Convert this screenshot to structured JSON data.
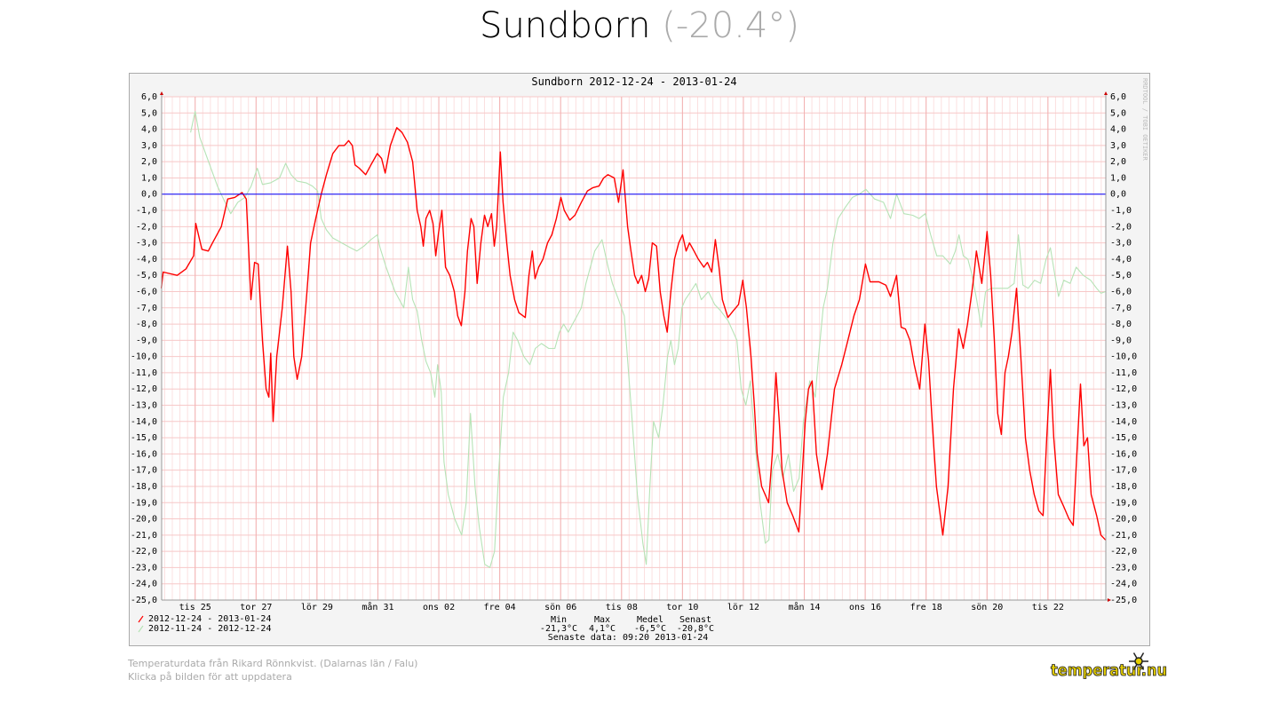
{
  "header": {
    "name": "Sundborn",
    "current": "(-20.4°)"
  },
  "chart_data": {
    "type": "line",
    "title": "Sundborn 2012-12-24 - 2013-01-24",
    "watermark": "RRDTOOL / TOBI OETIKER",
    "xlim": [
      -0.1,
      30.9
    ],
    "ylim": [
      -25,
      6
    ],
    "grid": true,
    "reference_line": {
      "value": 0,
      "color": "#0000ff"
    },
    "xticks": [
      {
        "value": 1,
        "label": "tis 25"
      },
      {
        "value": 3,
        "label": "tor 27"
      },
      {
        "value": 5,
        "label": "lör 29"
      },
      {
        "value": 7,
        "label": "mån 31"
      },
      {
        "value": 9,
        "label": "ons 02"
      },
      {
        "value": 11,
        "label": "fre 04"
      },
      {
        "value": 13,
        "label": "sön 06"
      },
      {
        "value": 15,
        "label": "tis 08"
      },
      {
        "value": 17,
        "label": "tor 10"
      },
      {
        "value": 19,
        "label": "lör 12"
      },
      {
        "value": 21,
        "label": "mån 14"
      },
      {
        "value": 23,
        "label": "ons 16"
      },
      {
        "value": 25,
        "label": "fre 18"
      },
      {
        "value": 27,
        "label": "sön 20"
      },
      {
        "value": 29,
        "label": "tis 22"
      }
    ],
    "yticks": [
      {
        "value": 6,
        "label": "6,0"
      },
      {
        "value": 5,
        "label": "5,0"
      },
      {
        "value": 4,
        "label": "4,0"
      },
      {
        "value": 3,
        "label": "3,0"
      },
      {
        "value": 2,
        "label": "2,0"
      },
      {
        "value": 1,
        "label": "1,0"
      },
      {
        "value": 0,
        "label": "0,0"
      },
      {
        "value": -1,
        "label": "-1,0"
      },
      {
        "value": -2,
        "label": "-2,0"
      },
      {
        "value": -3,
        "label": "-3,0"
      },
      {
        "value": -4,
        "label": "-4,0"
      },
      {
        "value": -5,
        "label": "-5,0"
      },
      {
        "value": -6,
        "label": "-6,0"
      },
      {
        "value": -7,
        "label": "-7,0"
      },
      {
        "value": -8,
        "label": "-8,0"
      },
      {
        "value": -9,
        "label": "-9,0"
      },
      {
        "value": -10,
        "label": "-10,0"
      },
      {
        "value": -11,
        "label": "-11,0"
      },
      {
        "value": -12,
        "label": "-12,0"
      },
      {
        "value": -13,
        "label": "-13,0"
      },
      {
        "value": -14,
        "label": "-14,0"
      },
      {
        "value": -15,
        "label": "-15,0"
      },
      {
        "value": -16,
        "label": "-16,0"
      },
      {
        "value": -17,
        "label": "-17,0"
      },
      {
        "value": -18,
        "label": "-18,0"
      },
      {
        "value": -19,
        "label": "-19,0"
      },
      {
        "value": -20,
        "label": "-20,0"
      },
      {
        "value": -21,
        "label": "-21,0"
      },
      {
        "value": -22,
        "label": "-22,0"
      },
      {
        "value": -23,
        "label": "-23,0"
      },
      {
        "value": -24,
        "label": "-24,0"
      },
      {
        "value": -25,
        "label": "-25,0"
      }
    ],
    "series": [
      {
        "name": "2012-12-24 - 2013-01-24",
        "color": "#ff0000",
        "x": [
          -0.11,
          -0.05,
          0.41,
          0.7,
          0.95,
          1.02,
          1.22,
          1.43,
          1.57,
          1.86,
          2.07,
          2.3,
          2.54,
          2.68,
          2.83,
          2.95,
          3.07,
          3.21,
          3.33,
          3.42,
          3.48,
          3.56,
          3.68,
          3.86,
          4.03,
          4.15,
          4.24,
          4.35,
          4.5,
          4.67,
          4.79,
          4.96,
          5.14,
          5.31,
          5.52,
          5.72,
          5.9,
          6.04,
          6.16,
          6.25,
          6.39,
          6.6,
          6.77,
          6.98,
          7.12,
          7.24,
          7.41,
          7.62,
          7.79,
          7.97,
          8.14,
          8.29,
          8.41,
          8.49,
          8.58,
          8.7,
          8.81,
          8.9,
          8.99,
          9.1,
          9.22,
          9.36,
          9.51,
          9.62,
          9.74,
          9.86,
          9.94,
          10.06,
          10.15,
          10.26,
          10.38,
          10.5,
          10.61,
          10.73,
          10.82,
          10.9,
          11.02,
          11.11,
          11.23,
          11.34,
          11.49,
          11.63,
          11.84,
          11.96,
          12.07,
          12.16,
          12.28,
          12.42,
          12.57,
          12.71,
          12.86,
          13.01,
          13.12,
          13.3,
          13.47,
          13.68,
          13.88,
          14.06,
          14.26,
          14.41,
          14.55,
          14.76,
          14.9,
          15.05,
          15.2,
          15.31,
          15.43,
          15.54,
          15.66,
          15.78,
          15.89,
          16.01,
          16.15,
          16.27,
          16.39,
          16.5,
          16.62,
          16.74,
          16.88,
          17.0,
          17.12,
          17.23,
          17.38,
          17.52,
          17.7,
          17.82,
          17.96,
          18.08,
          18.2,
          18.31,
          18.49,
          18.66,
          18.84,
          18.98,
          19.1,
          19.25,
          19.36,
          19.45,
          19.6,
          19.83,
          19.95,
          20.07,
          20.18,
          20.27,
          20.44,
          20.62,
          20.82,
          20.91,
          21.03,
          21.14,
          21.26,
          21.4,
          21.58,
          21.76,
          21.99,
          22.23,
          22.43,
          22.63,
          22.81,
          23.01,
          23.16,
          23.45,
          23.68,
          23.83,
          24.03,
          24.18,
          24.32,
          24.47,
          24.61,
          24.79,
          24.96,
          25.08,
          25.2,
          25.34,
          25.55,
          25.72,
          25.9,
          26.07,
          26.22,
          26.36,
          26.54,
          26.65,
          26.83,
          27.0,
          27.12,
          27.24,
          27.35,
          27.47,
          27.59,
          27.7,
          27.82,
          27.97,
          28.11,
          28.26,
          28.4,
          28.55,
          28.7,
          28.84,
          28.96,
          29.08,
          29.19,
          29.34,
          29.51,
          29.69,
          29.83,
          29.95,
          30.07,
          30.18,
          30.3,
          30.42,
          30.6,
          30.74,
          30.89
        ],
        "values": [
          -5.8,
          -4.8,
          -5.0,
          -4.6,
          -3.8,
          -1.8,
          -3.4,
          -3.5,
          -3.0,
          -2.0,
          -0.3,
          -0.2,
          0.1,
          -0.3,
          -6.5,
          -4.2,
          -4.3,
          -9.0,
          -12.0,
          -12.5,
          -9.8,
          -14.0,
          -10.0,
          -7.0,
          -3.2,
          -6.0,
          -10.0,
          -11.4,
          -10.0,
          -6.0,
          -3.0,
          -1.5,
          0.0,
          1.2,
          2.5,
          3.0,
          3.0,
          3.3,
          3.0,
          1.8,
          1.6,
          1.2,
          1.8,
          2.5,
          2.2,
          1.3,
          3.0,
          4.1,
          3.8,
          3.2,
          2.0,
          -1.0,
          -2.0,
          -3.2,
          -1.5,
          -1.0,
          -1.8,
          -3.8,
          -2.4,
          -1.0,
          -4.5,
          -5.0,
          -6.0,
          -7.5,
          -8.1,
          -6.0,
          -3.5,
          -1.5,
          -2.0,
          -5.5,
          -3.0,
          -1.3,
          -2.0,
          -1.2,
          -3.2,
          -2.0,
          2.6,
          -0.5,
          -3.0,
          -5.0,
          -6.5,
          -7.3,
          -7.6,
          -5.0,
          -3.5,
          -5.2,
          -4.5,
          -4.0,
          -3.0,
          -2.5,
          -1.5,
          -0.2,
          -1.0,
          -1.6,
          -1.3,
          -0.5,
          0.2,
          0.4,
          0.5,
          1.0,
          1.2,
          1.0,
          -0.5,
          1.5,
          -2.0,
          -3.5,
          -5.0,
          -5.5,
          -5.0,
          -6.0,
          -5.2,
          -3.0,
          -3.2,
          -6.0,
          -7.5,
          -8.5,
          -6.0,
          -4.0,
          -3.0,
          -2.5,
          -3.5,
          -3.0,
          -3.5,
          -4.0,
          -4.5,
          -4.2,
          -4.8,
          -2.8,
          -4.5,
          -6.5,
          -7.6,
          -7.2,
          -6.8,
          -5.3,
          -7.0,
          -10.0,
          -13.0,
          -16.0,
          -18.0,
          -19.0,
          -16.0,
          -11.0,
          -14.0,
          -17.0,
          -19.0,
          -19.8,
          -20.8,
          -18.0,
          -14.0,
          -12.0,
          -11.5,
          -16.0,
          -18.2,
          -16.0,
          -12.0,
          -10.5,
          -9.0,
          -7.5,
          -6.5,
          -4.3,
          -5.4,
          -5.4,
          -5.6,
          -6.3,
          -5.0,
          -8.2,
          -8.3,
          -9.0,
          -10.5,
          -12.0,
          -8.0,
          -10.2,
          -14.0,
          -18.0,
          -21.0,
          -18.0,
          -12.0,
          -8.3,
          -9.5,
          -8.0,
          -5.5,
          -3.5,
          -5.5,
          -2.3,
          -5.0,
          -9.0,
          -13.5,
          -14.8,
          -11.0,
          -10.0,
          -8.5,
          -5.8,
          -10.0,
          -15.0,
          -17.0,
          -18.5,
          -19.5,
          -19.8,
          -15.0,
          -10.8,
          -15.0,
          -18.5,
          -19.2,
          -20.0,
          -20.4,
          -16.0,
          -11.7,
          -15.5,
          -15.0,
          -18.5,
          -19.8,
          -21.0,
          -21.3
        ]
      },
      {
        "name": "2012-11-24 - 2012-12-24",
        "color": "#b6e3b6",
        "x": [
          0.85,
          1.0,
          1.15,
          1.44,
          1.73,
          1.93,
          2.17,
          2.4,
          2.63,
          2.84,
          3.04,
          3.21,
          3.48,
          3.77,
          3.97,
          4.15,
          4.35,
          4.64,
          4.85,
          5.02,
          5.14,
          5.31,
          5.52,
          5.81,
          6.1,
          6.31,
          6.54,
          6.77,
          6.98,
          7.07,
          7.27,
          7.56,
          7.85,
          8.0,
          8.14,
          8.29,
          8.44,
          8.58,
          8.73,
          8.87,
          8.96,
          9.08,
          9.17,
          9.31,
          9.52,
          9.75,
          9.9,
          10.04,
          10.19,
          10.33,
          10.51,
          10.68,
          10.83,
          10.97,
          11.12,
          11.29,
          11.44,
          11.59,
          11.79,
          11.99,
          12.17,
          12.37,
          12.61,
          12.81,
          12.96,
          13.1,
          13.25,
          13.39,
          13.54,
          13.68,
          13.83,
          14.12,
          14.36,
          14.56,
          14.7,
          14.9,
          15.09,
          15.23,
          15.35,
          15.52,
          15.7,
          15.81,
          15.93,
          16.05,
          16.22,
          16.36,
          16.51,
          16.62,
          16.74,
          16.86,
          16.98,
          17.09,
          17.27,
          17.44,
          17.62,
          17.85,
          18.06,
          18.26,
          18.5,
          18.67,
          18.79,
          18.93,
          19.08,
          19.23,
          19.37,
          19.55,
          19.72,
          19.84,
          19.95,
          20.13,
          20.3,
          20.48,
          20.65,
          20.83,
          20.97,
          21.18,
          21.36,
          21.47,
          21.62,
          21.76,
          21.94,
          22.11,
          22.35,
          22.58,
          22.81,
          23.02,
          23.31,
          23.6,
          23.83,
          24.03,
          24.27,
          24.56,
          24.77,
          24.97,
          25.15,
          25.35,
          25.55,
          25.79,
          25.96,
          26.08,
          26.22,
          26.37,
          26.51,
          26.66,
          26.81,
          26.95,
          27.13,
          27.39,
          27.68,
          27.89,
          28.03,
          28.18,
          28.35,
          28.56,
          28.76,
          28.94,
          29.08,
          29.23,
          29.35,
          29.52,
          29.73,
          29.93,
          30.16,
          30.4,
          30.6,
          30.74,
          30.89
        ],
        "values": [
          3.8,
          5.1,
          3.5,
          2.0,
          0.5,
          -0.3,
          -1.2,
          -0.5,
          -0.2,
          0.5,
          1.6,
          0.6,
          0.7,
          1.0,
          1.9,
          1.2,
          0.8,
          0.7,
          0.5,
          0.2,
          -1.5,
          -2.2,
          -2.7,
          -3.0,
          -3.3,
          -3.5,
          -3.2,
          -2.8,
          -2.5,
          -3.3,
          -4.5,
          -6.0,
          -7.0,
          -4.5,
          -6.5,
          -7.2,
          -9.0,
          -10.3,
          -11.0,
          -12.5,
          -10.5,
          -12.2,
          -16.5,
          -18.5,
          -20.0,
          -21.0,
          -19.0,
          -13.5,
          -18.0,
          -20.5,
          -22.8,
          -23.0,
          -22.0,
          -17.0,
          -12.5,
          -11.0,
          -8.5,
          -9.0,
          -10.0,
          -10.5,
          -9.5,
          -9.2,
          -9.5,
          -9.5,
          -8.5,
          -8.0,
          -8.5,
          -8.0,
          -7.5,
          -7.0,
          -5.5,
          -3.5,
          -2.8,
          -4.5,
          -5.5,
          -6.5,
          -7.5,
          -11.0,
          -14.0,
          -18.5,
          -21.5,
          -22.8,
          -18.0,
          -14.0,
          -15.0,
          -13.0,
          -10.0,
          -9.0,
          -10.5,
          -9.5,
          -7.0,
          -6.5,
          -6.0,
          -5.5,
          -6.5,
          -6.0,
          -6.8,
          -7.2,
          -7.8,
          -8.5,
          -9.0,
          -12.0,
          -13.0,
          -11.5,
          -15.0,
          -19.0,
          -21.5,
          -21.3,
          -17.0,
          -16.0,
          -17.5,
          -16.0,
          -18.3,
          -17.5,
          -14.0,
          -11.5,
          -12.5,
          -10.0,
          -7.0,
          -5.8,
          -3.0,
          -1.5,
          -0.8,
          -0.2,
          0.0,
          0.3,
          -0.3,
          -0.5,
          -1.5,
          0.0,
          -1.2,
          -1.3,
          -1.5,
          -1.2,
          -2.5,
          -3.8,
          -3.8,
          -4.3,
          -3.5,
          -2.5,
          -3.8,
          -4.0,
          -5.0,
          -6.5,
          -8.2,
          -6.0,
          -5.8,
          -5.8,
          -5.8,
          -5.5,
          -2.5,
          -5.6,
          -5.8,
          -5.3,
          -5.5,
          -4.0,
          -3.3,
          -5.0,
          -6.3,
          -5.3,
          -5.5,
          -4.5,
          -5.0,
          -5.3,
          -5.8,
          -6.1,
          -6.0
        ]
      }
    ]
  },
  "stats": {
    "headers": [
      "Min",
      "Max",
      "Medel",
      "Senast"
    ],
    "values": [
      "-21,3°C",
      "4,1°C",
      "-6,5°C",
      "-20,8°C"
    ],
    "last_data": "Senaste data: 09:20 2013-01-24"
  },
  "footer": {
    "source": "Temperaturdata från Rikard Rönnkvist. (Dalarnas län / Falu)",
    "hint": "Klicka på bilden för att uppdatera",
    "logo": "temperatur.nu"
  }
}
